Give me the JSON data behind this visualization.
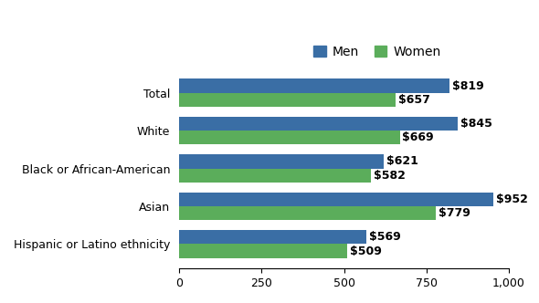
{
  "categories": [
    "Total",
    "White",
    "Black or African-American",
    "Asian",
    "Hispanic or Latino ethnicity"
  ],
  "men_values": [
    819,
    845,
    621,
    952,
    569
  ],
  "women_values": [
    657,
    669,
    582,
    779,
    509
  ],
  "men_color": "#3A6EA5",
  "women_color": "#5BAD5B",
  "legend_labels": [
    "Men",
    "Women"
  ],
  "xlim": [
    0,
    1000
  ],
  "xticks": [
    0,
    250,
    500,
    750,
    1000
  ],
  "xtick_labels": [
    "0",
    "250",
    "500",
    "750",
    "1,000"
  ],
  "bar_height": 0.37,
  "background_color": "#ffffff",
  "label_fontsize": 9,
  "tick_fontsize": 9,
  "legend_fontsize": 10
}
